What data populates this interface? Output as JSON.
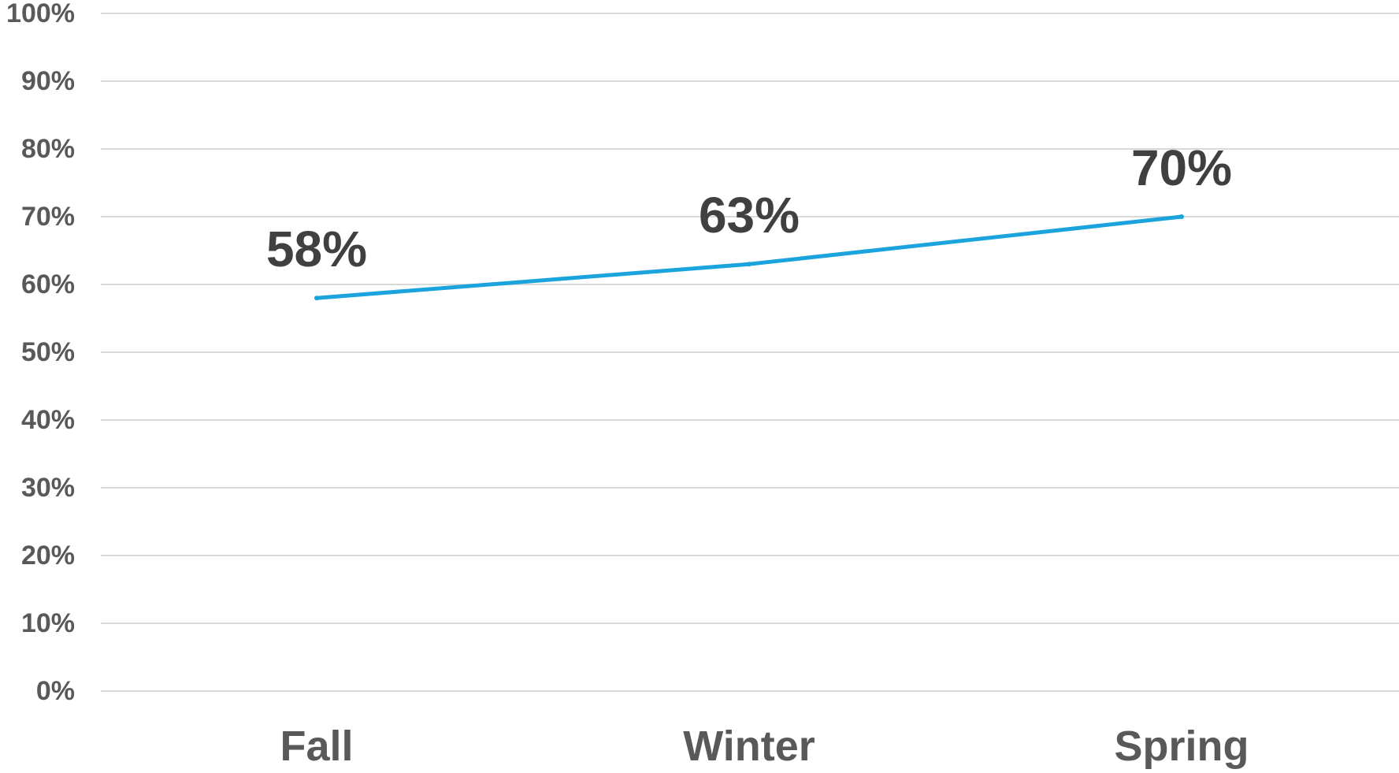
{
  "chart_data": {
    "type": "line",
    "title": "",
    "xlabel": "",
    "ylabel": "",
    "categories": [
      "Fall",
      "Winter",
      "Spring"
    ],
    "series": [
      {
        "values": [
          58,
          63,
          70
        ],
        "data_labels": [
          "58%",
          "63%",
          "70%"
        ],
        "color": "#1aa3dd"
      }
    ],
    "ylim": [
      0,
      100
    ],
    "yticks": [
      {
        "value": 0,
        "label": "0%"
      },
      {
        "value": 10,
        "label": "10%"
      },
      {
        "value": 20,
        "label": "20%"
      },
      {
        "value": 30,
        "label": "30%"
      },
      {
        "value": 40,
        "label": "40%"
      },
      {
        "value": 50,
        "label": "50%"
      },
      {
        "value": 60,
        "label": "60%"
      },
      {
        "value": 70,
        "label": "70%"
      },
      {
        "value": 80,
        "label": "80%"
      },
      {
        "value": 90,
        "label": "90%"
      },
      {
        "value": 100,
        "label": "100%"
      }
    ],
    "grid": true,
    "legend": "none"
  },
  "colors": {
    "series": "#1aa3dd",
    "gridline": "#d9d9d9",
    "tick_text": "#595959",
    "data_label_text": "#404040"
  }
}
